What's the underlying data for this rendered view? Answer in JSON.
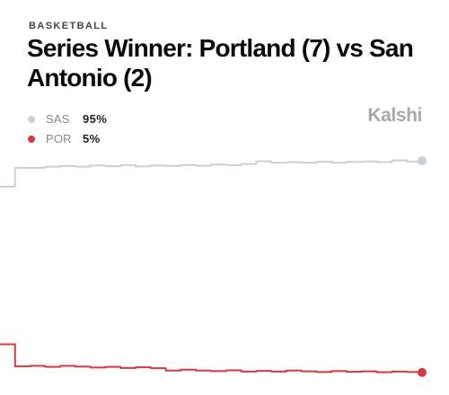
{
  "header": {
    "category": "BASKETBALL",
    "title": "Series Winner: Portland (7) vs San Antonio (2)"
  },
  "brand": {
    "name": "Kalshi"
  },
  "legend": [
    {
      "team": "SAS",
      "percent": "95%",
      "color": "#c9d1d8"
    },
    {
      "team": "POR",
      "percent": "5%",
      "color": "#d7373f"
    }
  ],
  "chart_data": {
    "type": "line",
    "title": "",
    "xlabel": "",
    "ylabel": "",
    "ylim": [
      0,
      100
    ],
    "grid": false,
    "legend_position": "top-left",
    "series": [
      {
        "name": "SAS",
        "color": "#c9d1d8",
        "end_marker": true,
        "values": [
          84,
          92,
          92,
          92.5,
          92.8,
          92.5,
          93,
          92.7,
          93.2,
          92.6,
          93,
          92.8,
          93.2,
          92.9,
          93.4,
          93.2,
          93.6,
          94.8,
          94.2,
          94.4,
          94.2,
          94.6,
          94.2,
          94.5,
          94.7,
          94.4,
          95.2,
          94.6,
          95
        ]
      },
      {
        "name": "POR",
        "color": "#d7373f",
        "end_marker": true,
        "values": [
          17,
          7.6,
          7.8,
          7.4,
          7.8,
          7.5,
          7.1,
          7.4,
          6.9,
          7.2,
          6.8,
          5.8,
          6.2,
          5.8,
          5.6,
          5.9,
          5.4,
          5.7,
          5.4,
          5.8,
          5.5,
          5.2,
          5.6,
          5.3,
          5.5,
          5.1,
          5.4,
          5.2,
          5
        ]
      }
    ]
  }
}
